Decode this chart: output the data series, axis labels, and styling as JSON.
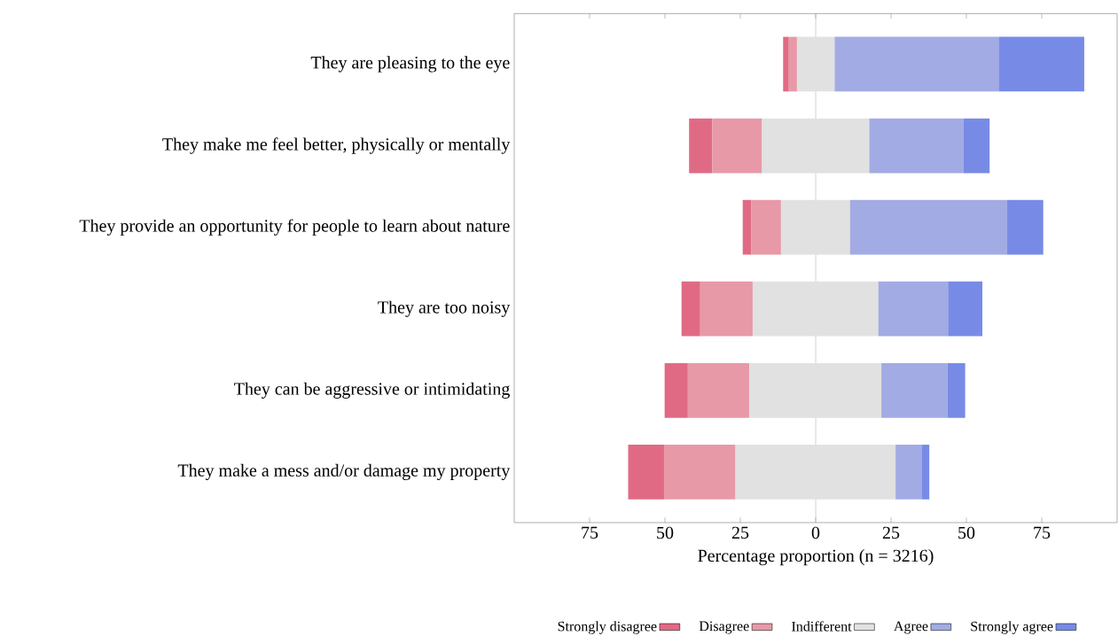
{
  "chart_data": {
    "type": "bar",
    "orientation": "horizontal",
    "categories": [
      "They are pleasing to the eye",
      "They make me feel better, physically or mentally",
      "They provide an opportunity for people to learn about nature",
      "They are too noisy",
      "They can be aggressive or intimidating",
      "They make a mess and/or damage my property"
    ],
    "series": [
      {
        "name": "Strongly disagree",
        "color": "#e06a84",
        "base": [
          -10.8,
          -42.0,
          -24.2,
          -44.5,
          -50.1,
          -62.2
        ],
        "values": [
          1.9,
          7.7,
          2.9,
          6.2,
          7.7,
          11.9
        ]
      },
      {
        "name": "Disagree",
        "color": "#e799a8",
        "base": [
          -8.9,
          -34.3,
          -21.3,
          -38.3,
          -42.4,
          -50.3
        ],
        "values": [
          2.7,
          16.5,
          9.8,
          17.4,
          20.4,
          23.7
        ]
      },
      {
        "name": "Indifferent",
        "color": "#e1e1e1",
        "base": [
          -6.2,
          -17.8,
          -11.5,
          -20.9,
          -22.0,
          -26.6
        ],
        "values": [
          12.5,
          35.6,
          22.9,
          41.7,
          43.8,
          53.1
        ]
      },
      {
        "name": "Agree",
        "color": "#a2abe3",
        "base": [
          6.3,
          17.8,
          11.4,
          20.8,
          21.8,
          26.5
        ],
        "values": [
          54.4,
          31.3,
          52.1,
          23.1,
          21.9,
          8.8
        ]
      },
      {
        "name": "Strongly agree",
        "color": "#778be6",
        "base": [
          60.7,
          49.1,
          63.5,
          43.9,
          43.7,
          35.3
        ],
        "values": [
          28.4,
          8.6,
          12.0,
          11.4,
          5.9,
          2.4
        ]
      }
    ],
    "xlabel": "Percentage proportion (n = 3216)",
    "xlim": [
      -100,
      100
    ],
    "xticks": [
      {
        "value": -75,
        "label": "75"
      },
      {
        "value": -50,
        "label": "50"
      },
      {
        "value": -25,
        "label": "25"
      },
      0,
      25,
      50,
      75
    ],
    "ref_lines": [
      {
        "axis": "x",
        "value": 0,
        "color": "#aaaaaa"
      }
    ],
    "legend": "bottom",
    "grid": false
  }
}
